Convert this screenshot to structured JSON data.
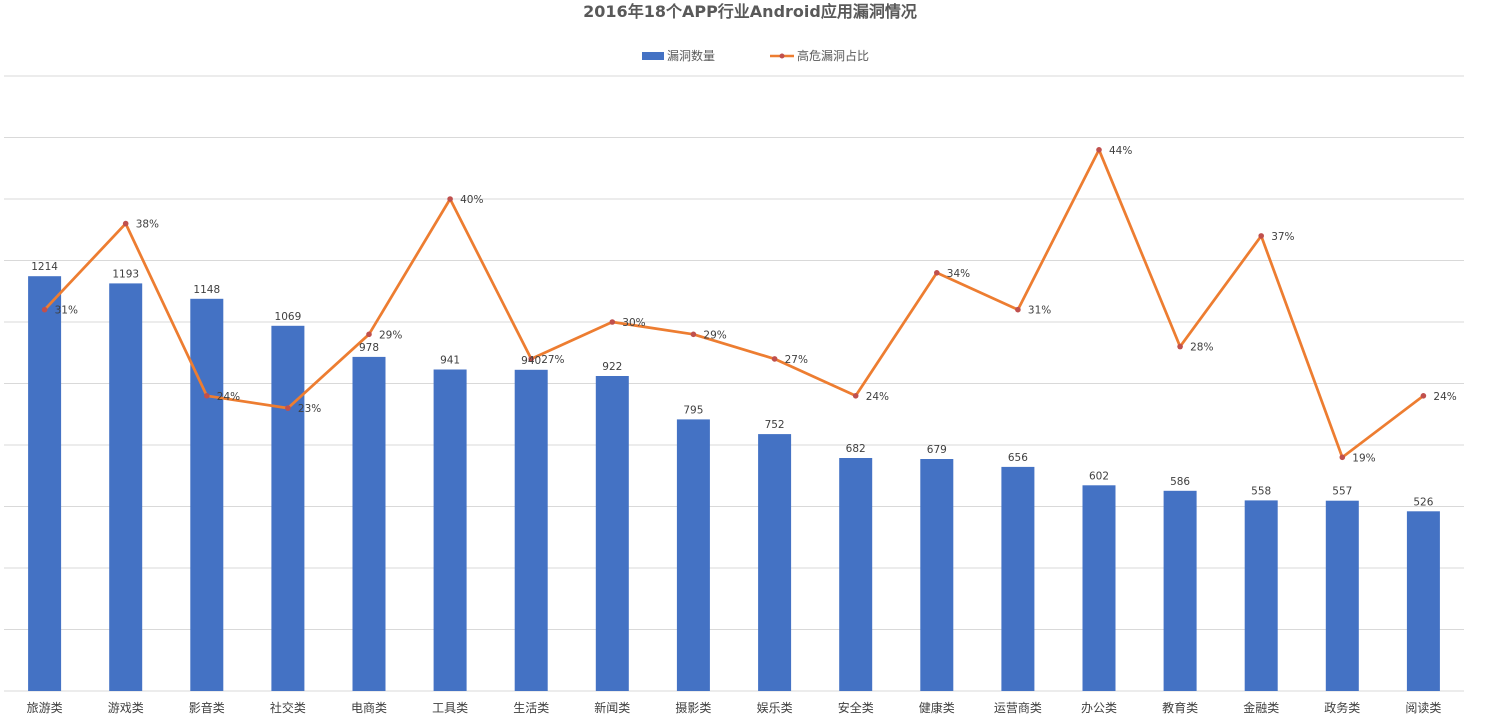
{
  "chart_data": {
    "type": "bar",
    "title": "2016年18个APP行业Android应用漏洞情况",
    "legend_position": "top-center",
    "grid": true,
    "categories": [
      "旅游类",
      "游戏类",
      "影音类",
      "社交类",
      "电商类",
      "工具类",
      "生活类",
      "新闻类",
      "摄影类",
      "娱乐类",
      "安全类",
      "健康类",
      "运营商类",
      "办公类",
      "教育类",
      "金融类",
      "政务类",
      "阅读类"
    ],
    "ylim_primary": [
      0,
      1800
    ],
    "ylim_secondary": [
      0,
      0.5
    ],
    "series": [
      {
        "name": "漏洞数量",
        "type": "bar",
        "axis": "primary",
        "color": "#4472c4",
        "values": [
          1214,
          1193,
          1148,
          1069,
          978,
          941,
          940,
          922,
          795,
          752,
          682,
          679,
          656,
          602,
          586,
          558,
          557,
          526
        ],
        "labels": [
          "1214",
          "1193",
          "1148",
          "1069",
          "978",
          "941",
          "940",
          "922",
          "795",
          "752",
          "682",
          "679",
          "656",
          "602",
          "586",
          "558",
          "557",
          "526"
        ]
      },
      {
        "name": "高危漏洞占比",
        "type": "line",
        "axis": "secondary",
        "color": "#ed7d31",
        "marker_color": "#c0504d",
        "values": [
          0.31,
          0.38,
          0.24,
          0.23,
          0.29,
          0.4,
          0.27,
          0.3,
          0.29,
          0.27,
          0.24,
          0.34,
          0.31,
          0.44,
          0.28,
          0.37,
          0.19,
          0.24
        ],
        "labels": [
          "31%",
          "38%",
          "24%",
          "23%",
          "29%",
          "40%",
          "27%",
          "30%",
          "29%",
          "27%",
          "24%",
          "34%",
          "31%",
          "44%",
          "28%",
          "37%",
          "19%",
          "24%"
        ]
      }
    ]
  }
}
